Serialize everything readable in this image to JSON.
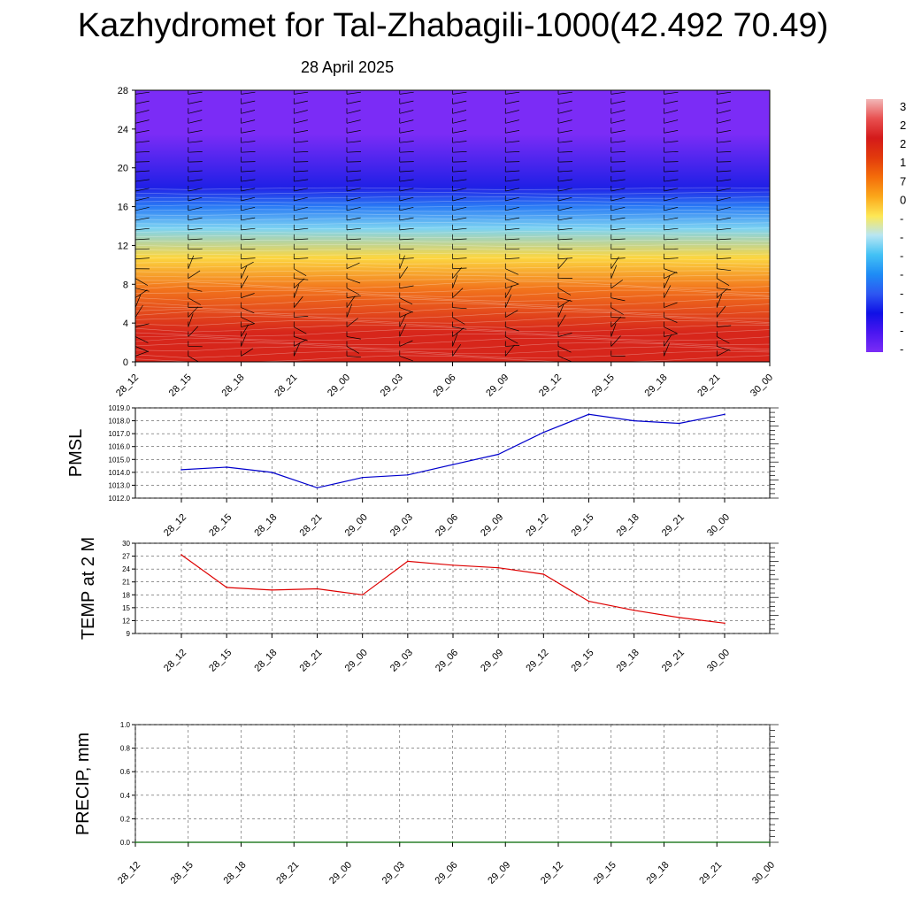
{
  "title": "Kazhydromet for Tal-Zhabagili-1000(42.492 70.49)",
  "date": "28 April 2025",
  "colorbar_labels": [
    "3",
    "2",
    "2",
    "1",
    "7",
    "0",
    "-",
    "-",
    "-",
    "-",
    "-",
    "-",
    "-",
    "-"
  ],
  "colorbar_colors": [
    "#f2b7b7",
    "#e85050",
    "#d41a1a",
    "#e23a0c",
    "#f46d0a",
    "#fba71a",
    "#fde855",
    "#b8e6f3",
    "#43c2f5",
    "#1e8cf5",
    "#2d57f2",
    "#1010e6",
    "#4a16f0",
    "#7b2cf6"
  ],
  "chart_data": [
    {
      "type": "heatmap",
      "ylim": [
        0,
        28
      ],
      "yticks": [
        0,
        4,
        8,
        12,
        16,
        20,
        24,
        28
      ],
      "categories": [
        "28_12",
        "28_15",
        "28_18",
        "28_21",
        "29_00",
        "29_03",
        "29_06",
        "29_09",
        "29_12",
        "29_15",
        "29_18",
        "29_21",
        "30_00"
      ],
      "description_bands": [
        {
          "from": 0,
          "to": 6,
          "color": "#d7261b"
        },
        {
          "from": 6,
          "to": 9,
          "color": "#f2741c"
        },
        {
          "from": 9,
          "to": 12.5,
          "color": "#fcd640"
        },
        {
          "from": 12.5,
          "to": 15,
          "color": "#7dd3f2"
        },
        {
          "from": 15,
          "to": 17,
          "color": "#2a7cf5"
        },
        {
          "from": 17,
          "to": 19,
          "color": "#2020e6"
        },
        {
          "from": 19,
          "to": 28,
          "color": "#7b2cf6"
        }
      ]
    },
    {
      "type": "line",
      "ylabel": "PMSL",
      "ylim": [
        1012.0,
        1019.0
      ],
      "yticks": [
        "1012.0",
        "1013.0",
        "1014.0",
        "1015.0",
        "1016.0",
        "1017.0",
        "1018.0",
        "1019.0"
      ],
      "categories": [
        "28_12",
        "28_15",
        "28_18",
        "28_21",
        "29_00",
        "29_03",
        "29_06",
        "29_09",
        "29_12",
        "29_15",
        "29_18",
        "29_21",
        "30_00"
      ],
      "series": [
        {
          "values": [
            1014.2,
            1014.4,
            1014.0,
            1012.8,
            1013.6,
            1013.8,
            1014.6,
            1015.4,
            1017.1,
            1018.5,
            1018.0,
            1017.8,
            1018.5
          ],
          "color": "#0000cc"
        }
      ]
    },
    {
      "type": "line",
      "ylabel": "TEMP at 2 M",
      "ylim": [
        9,
        30
      ],
      "yticks": [
        "9",
        "12",
        "15",
        "18",
        "21",
        "24",
        "27",
        "30"
      ],
      "categories": [
        "28_12",
        "28_15",
        "28_18",
        "28_21",
        "29_00",
        "29_03",
        "29_06",
        "29_09",
        "29_12",
        "29_15",
        "29_18",
        "29_21",
        "30_00"
      ],
      "series": [
        {
          "values": [
            27.3,
            19.7,
            19.1,
            19.4,
            18.0,
            25.8,
            24.9,
            24.3,
            22.8,
            16.5,
            14.4,
            12.7,
            11.4
          ],
          "color": "#dd0000"
        }
      ]
    },
    {
      "type": "line",
      "ylabel": "PRECIP, mm",
      "ylim": [
        0.0,
        1.0
      ],
      "yticks": [
        "0.0",
        "0.2",
        "0.4",
        "0.6",
        "0.8",
        "1.0"
      ],
      "categories": [
        "28_12",
        "28_15",
        "28_18",
        "28_21",
        "29_00",
        "29_03",
        "29_06",
        "29_09",
        "29_12",
        "29_15",
        "29_18",
        "29_21",
        "30_00"
      ],
      "series": [
        {
          "values": [
            0,
            0,
            0,
            0,
            0,
            0,
            0,
            0,
            0,
            0,
            0,
            0,
            0
          ],
          "color": "#006600"
        }
      ]
    }
  ]
}
